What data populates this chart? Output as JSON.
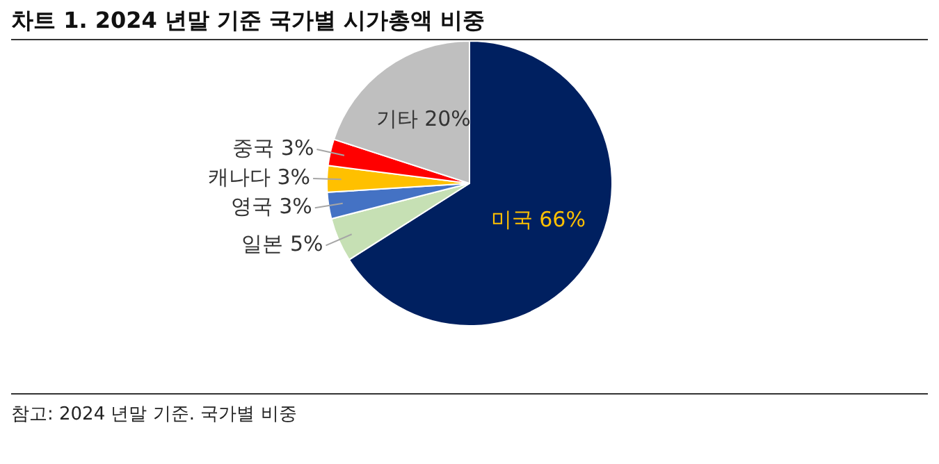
{
  "chart_data": {
    "type": "pie",
    "title": "차트 1. 2024 년말 기준 국가별 시가총액 비중",
    "categories": [
      "미국",
      "일본",
      "영국",
      "캐나다",
      "중국",
      "기타"
    ],
    "values": [
      66,
      5,
      3,
      3,
      3,
      20
    ],
    "value_labels": [
      "66%",
      "5%",
      "3%",
      "3%",
      "3%",
      "20%"
    ],
    "colors": [
      "#002060",
      "#c6e0b4",
      "#4472c4",
      "#ffc000",
      "#ff0000",
      "#bfbfbf"
    ],
    "data_labels": true,
    "legend": false,
    "annotations": [
      "참고: 2024 년말 기준. 국가별 비중"
    ]
  }
}
